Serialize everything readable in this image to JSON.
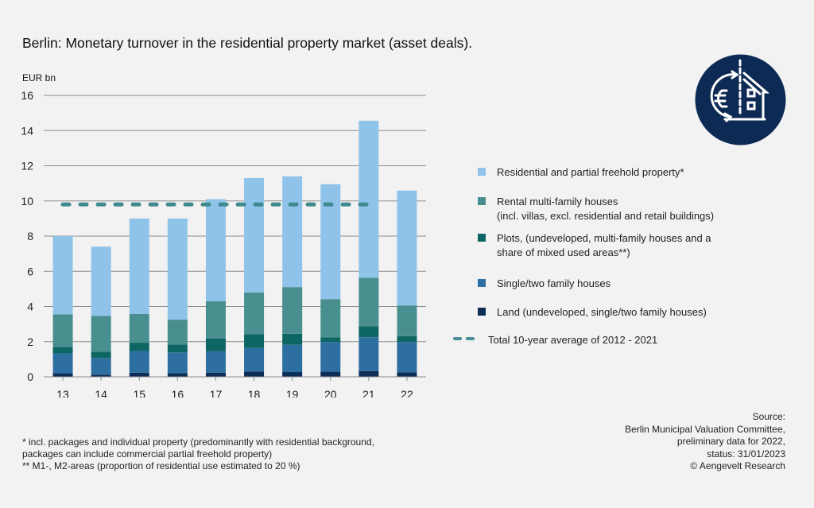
{
  "header": {
    "title": "Berlin: Monetary turnover in the residential property market (asset deals).",
    "unit": "EUR bn",
    "icon": "euro-house-exchange-icon"
  },
  "colors": {
    "background": "#f2f2f2",
    "residential": "#8fc3e9",
    "rental": "#4a8f8f",
    "plots": "#0e6664",
    "single": "#2e6fa2",
    "land": "#0d2d57",
    "average": "#3f8b8f",
    "icon_bg": "#0d2a54"
  },
  "chart_data": {
    "type": "bar",
    "stacked": true,
    "title": "Berlin: Monetary turnover in the residential property market (asset deals).",
    "xlabel": "",
    "ylabel": "EUR bn",
    "ylim": [
      0,
      16
    ],
    "yticks": [
      0,
      2,
      4,
      6,
      8,
      10,
      12,
      14,
      16
    ],
    "grid": true,
    "legend_position": "right",
    "categories": [
      "13",
      "14",
      "15",
      "16",
      "17",
      "18",
      "19",
      "20",
      "21",
      "22"
    ],
    "series": [
      {
        "key": "land",
        "name": "Land (undeveloped, single/two family houses)",
        "values": [
          0.2,
          0.12,
          0.23,
          0.21,
          0.23,
          0.3,
          0.27,
          0.29,
          0.33,
          0.26
        ]
      },
      {
        "key": "single",
        "name": "Single/two family houses",
        "values": [
          1.13,
          0.95,
          1.24,
          1.18,
          1.22,
          1.34,
          1.55,
          1.69,
          1.92,
          1.72
        ]
      },
      {
        "key": "plots",
        "name": "Plots, (undeveloped, multi-family houses and a share of mixed used areas**)",
        "values": [
          0.37,
          0.36,
          0.47,
          0.45,
          0.72,
          0.78,
          0.63,
          0.26,
          0.63,
          0.33
        ]
      },
      {
        "key": "rental",
        "name": "Rental multi-family houses (incl. villas, excl. residential and retail buildings)",
        "values": [
          1.85,
          2.04,
          1.64,
          1.41,
          2.13,
          2.38,
          2.65,
          2.18,
          2.75,
          1.75
        ]
      },
      {
        "key": "residential",
        "name": "Residential and partial freehold property*",
        "values": [
          4.45,
          3.93,
          5.42,
          5.75,
          5.8,
          6.5,
          6.3,
          6.53,
          8.93,
          6.53
        ]
      }
    ],
    "totals": [
      8.0,
      7.4,
      9.0,
      9.0,
      10.1,
      11.3,
      11.4,
      10.95,
      14.56,
      10.59
    ],
    "reference_line": {
      "name": "Total 10-year average of 2012 - 2021",
      "value": 9.8,
      "from_category": "13",
      "to_category": "21",
      "style": "dashed"
    }
  },
  "legend": [
    {
      "key": "residential",
      "label": "Residential and partial freehold property*"
    },
    {
      "key": "rental",
      "label": "Rental multi-family houses\n(incl. villas, excl. residential and retail buildings)"
    },
    {
      "key": "plots",
      "label": "Plots, (undeveloped, multi-family houses and a\nshare of mixed used areas**)"
    },
    {
      "key": "single",
      "label": "Single/two family houses"
    },
    {
      "key": "land",
      "label": "Land (undeveloped, single/two family houses)"
    },
    {
      "key": "average",
      "label": "Total 10-year average of 2012 - 2021"
    }
  ],
  "footnotes": [
    "* incl. packages and individual property (predominantly with residential background,",
    "packages can include commercial partial freehold property)",
    "** M1-, M2-areas (proportion of residential use estimated to 20 %)"
  ],
  "source": [
    "Source:",
    "Berlin Municipal Valuation Committee,",
    "preliminary data for 2022,",
    "status: 31/01/2023",
    "© Aengevelt Research"
  ]
}
